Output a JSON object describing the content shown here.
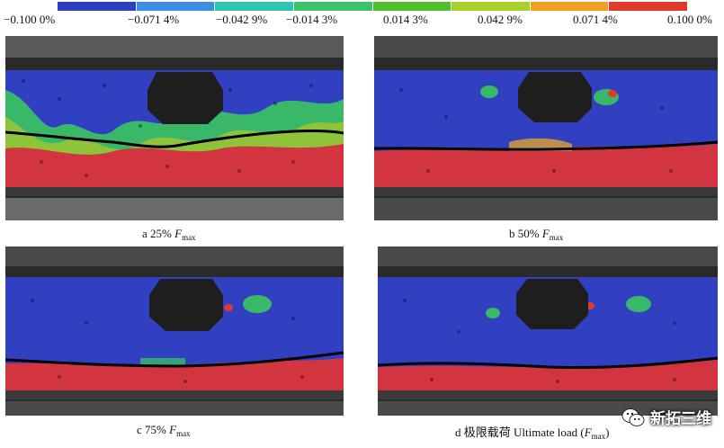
{
  "colorbar": {
    "colors": [
      "#2e3fbf",
      "#3a8fe0",
      "#2fc4b0",
      "#39c46a",
      "#4fbf2e",
      "#a8cf2a",
      "#f0a020",
      "#e03a2a"
    ],
    "ticks": [
      "−0.100 0%",
      "−0.071 4%",
      "−0.042 9%",
      "−0.014 3%",
      "0.014 3%",
      "0.042 9%",
      "0.071 4%",
      "0.100 0%"
    ]
  },
  "panels": [
    {
      "id": "a",
      "caption_prefix": "a  25% ",
      "caption_var": "F",
      "caption_sub": "max",
      "caption_suffix": ""
    },
    {
      "id": "b",
      "caption_prefix": "b  50% ",
      "caption_var": "F",
      "caption_sub": "max",
      "caption_suffix": ""
    },
    {
      "id": "c",
      "caption_prefix": "c  75% ",
      "caption_var": "F",
      "caption_sub": "max",
      "caption_suffix": ""
    },
    {
      "id": "d",
      "caption_prefix": "d  极限载荷 Ultimate load (",
      "caption_var": "F",
      "caption_sub": "max",
      "caption_suffix": ")"
    }
  ],
  "watermark": {
    "text": "新拓三维",
    "icon": "wechat-icon"
  }
}
